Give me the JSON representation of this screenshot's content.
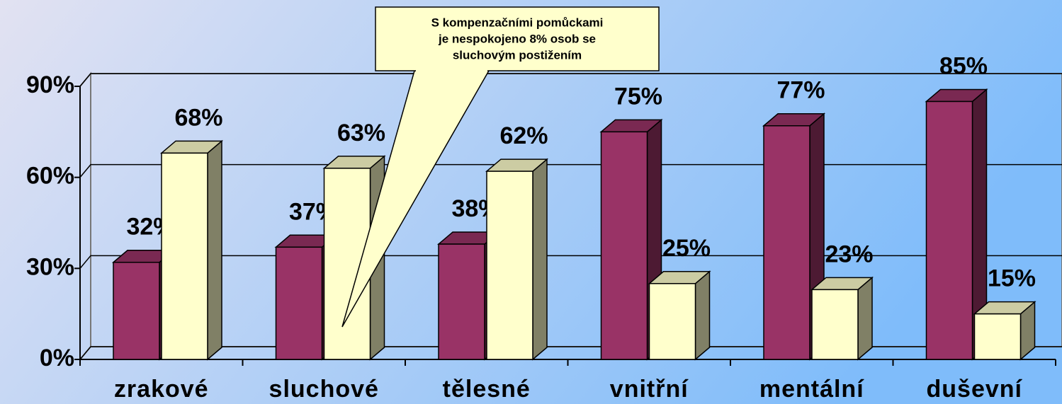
{
  "chart_data": {
    "type": "bar3d",
    "categories": [
      "zrakové",
      "sluchové",
      "tělesné",
      "vnitřní",
      "mentální",
      "duševní"
    ],
    "series": [
      {
        "color": "#993366",
        "values": [
          32,
          37,
          38,
          75,
          77,
          85
        ],
        "value_labels": [
          "32%",
          "37%",
          "38%",
          "75%",
          "77%",
          "85%"
        ]
      },
      {
        "color": "#ffffcc",
        "values": [
          68,
          63,
          62,
          25,
          23,
          15
        ],
        "value_labels": [
          "68%",
          "63%",
          "62%",
          "25%",
          "23%",
          "15%"
        ]
      }
    ],
    "ylim": [
      0,
      90
    ],
    "yticks": [
      {
        "value": 0,
        "label": "0%"
      },
      {
        "value": 30,
        "label": "30%"
      },
      {
        "value": 60,
        "label": "60%"
      },
      {
        "value": 90,
        "label": "90%"
      }
    ],
    "grid": true,
    "annotation": [
      "S kompenzačními pomůckami",
      "je nespokojeno 8% osob se",
      "sluchovým postižením"
    ]
  }
}
